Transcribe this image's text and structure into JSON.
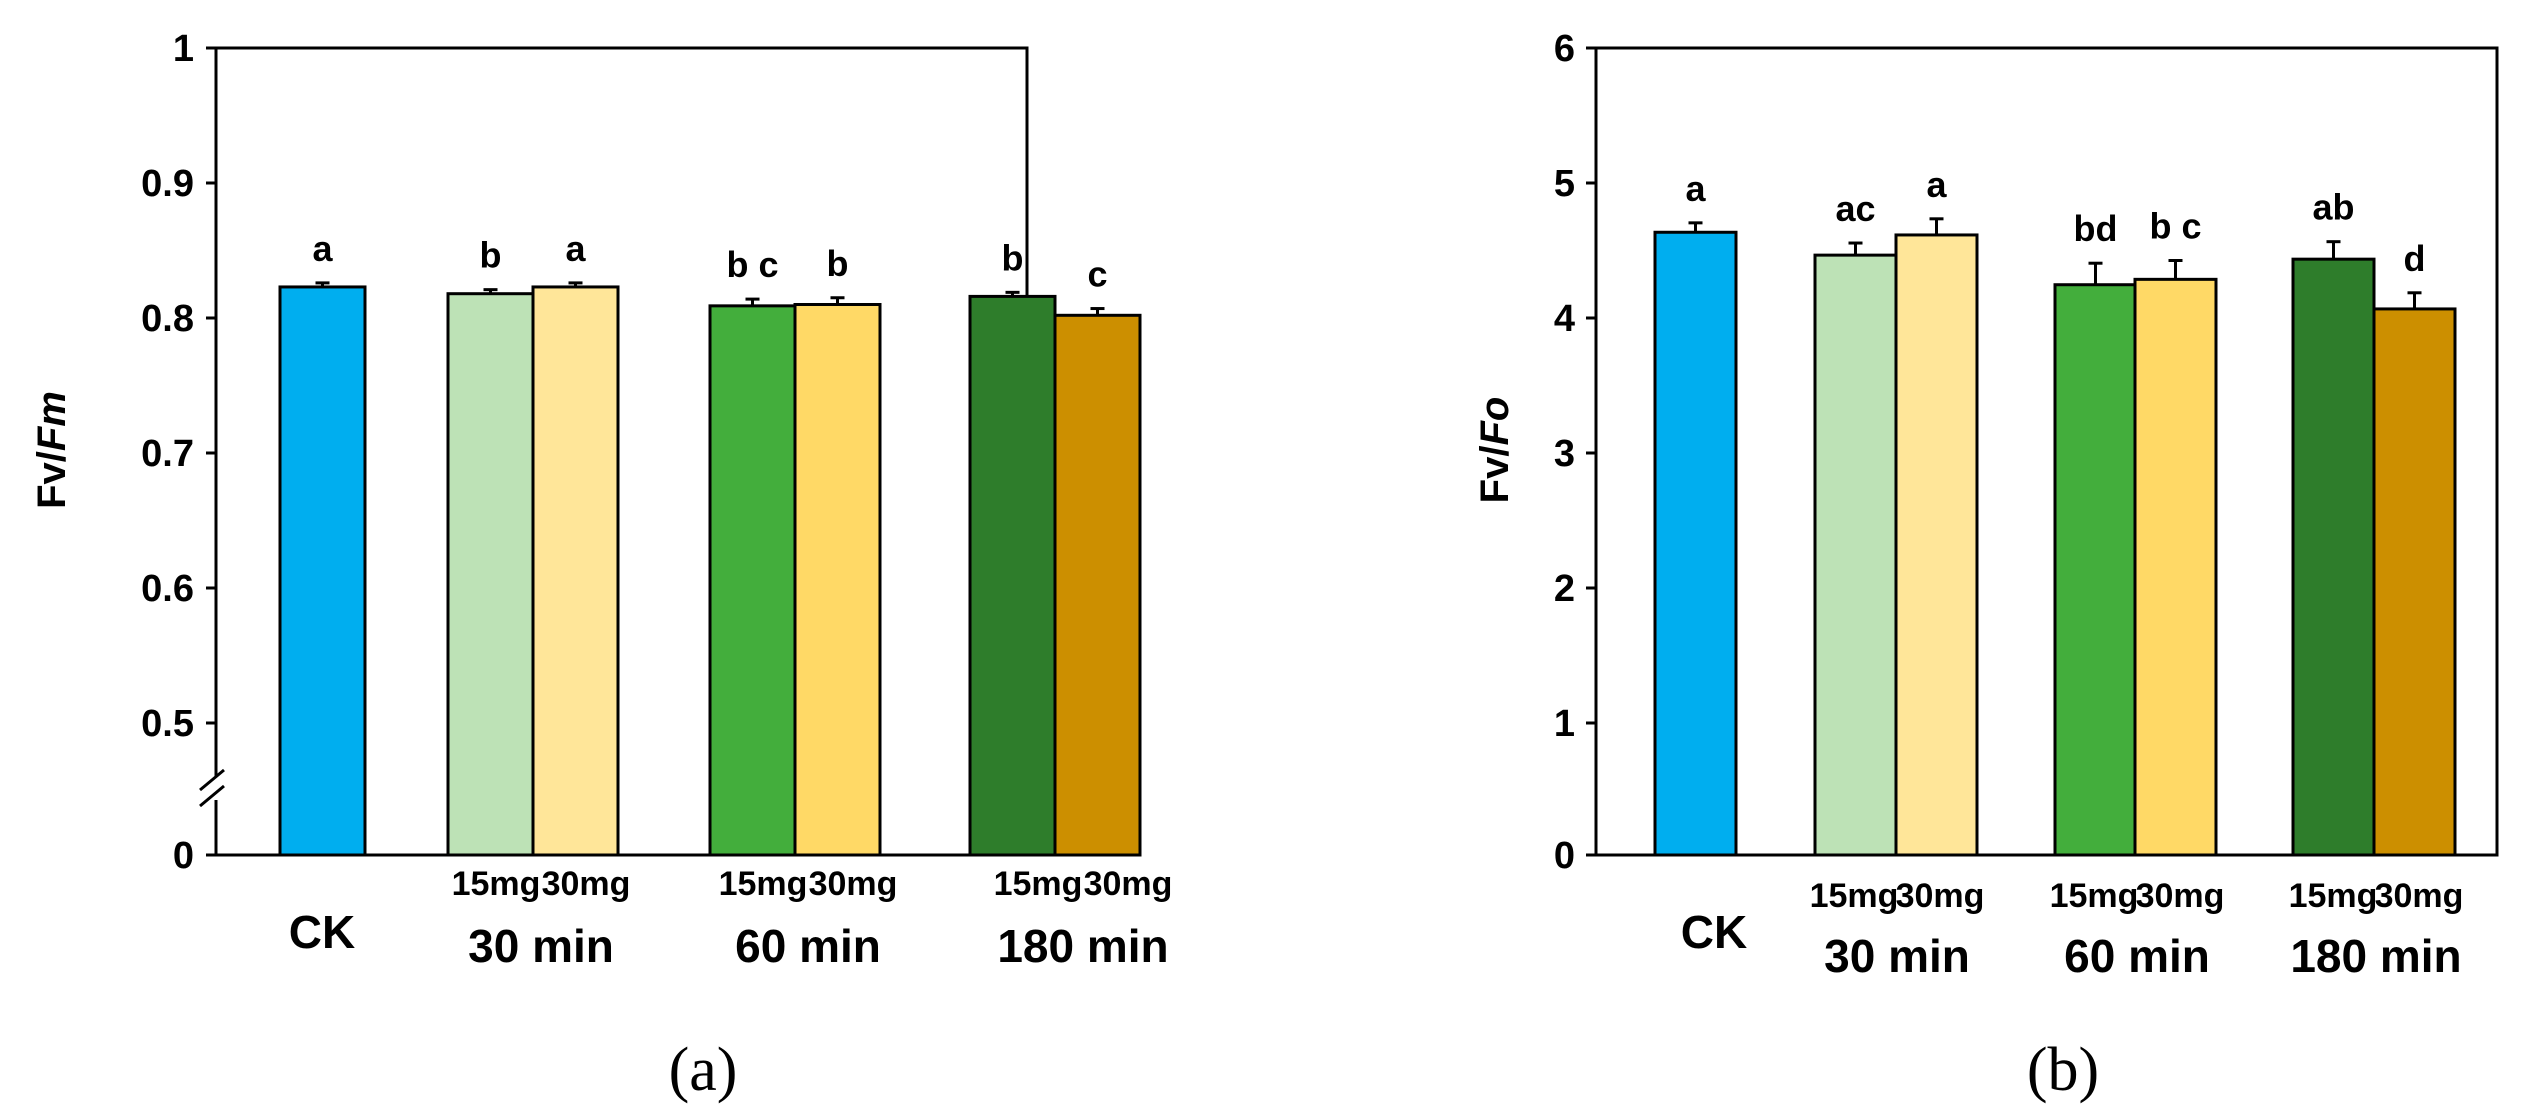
{
  "figure": {
    "panels": [
      {
        "id": "a",
        "caption": "(a)"
      },
      {
        "id": "b",
        "caption": "(b)"
      }
    ]
  },
  "chart_data": [
    {
      "type": "bar",
      "panel": "(a)",
      "ylabel_parts": [
        "Fv",
        "/",
        "Fm"
      ],
      "ylabel": "Fv/Fm",
      "axis_break": true,
      "yticks": [
        "1",
        "0.9",
        "0.8",
        "0.7",
        "0.6",
        "0.5",
        "0"
      ],
      "ylim_upper": [
        0.4,
        1.0
      ],
      "bars": [
        {
          "category": "CK",
          "dose": "",
          "group": "",
          "value": 0.823,
          "error": 0.003,
          "letter": "a",
          "color": "#00AEEF"
        },
        {
          "category": "15mg",
          "dose": "15mg",
          "group": "30 min",
          "value": 0.818,
          "error": 0.003,
          "letter": "b",
          "color": "#BDE2B6"
        },
        {
          "category": "30mg",
          "dose": "30mg",
          "group": "30 min",
          "value": 0.823,
          "error": 0.003,
          "letter": "a",
          "color": "#FFE699"
        },
        {
          "category": "15mg",
          "dose": "15mg",
          "group": "60 min",
          "value": 0.809,
          "error": 0.005,
          "letter": "bc",
          "color": "#43AE3C"
        },
        {
          "category": "30mg",
          "dose": "30mg",
          "group": "60 min",
          "value": 0.81,
          "error": 0.005,
          "letter": "b",
          "color": "#FFD966"
        },
        {
          "category": "15mg",
          "dose": "15mg",
          "group": "180 min",
          "value": 0.816,
          "error": 0.003,
          "letter": "b",
          "color": "#2E7D2B"
        },
        {
          "category": "30mg",
          "dose": "30mg",
          "group": "180 min",
          "value": 0.802,
          "error": 0.005,
          "letter": "c",
          "color": "#CC8F00"
        }
      ],
      "groups": [
        "30 min",
        "60 min",
        "180 min"
      ],
      "ck_label": "CK"
    },
    {
      "type": "bar",
      "panel": "(b)",
      "ylabel_parts": [
        "Fv",
        "/",
        "Fo"
      ],
      "ylabel": "Fv/Fo",
      "axis_break": false,
      "yticks": [
        "6",
        "5",
        "4",
        "3",
        "2",
        "1",
        "0"
      ],
      "ylim": [
        0,
        6
      ],
      "bars": [
        {
          "category": "CK",
          "dose": "",
          "group": "",
          "value": 4.63,
          "error": 0.07,
          "letter": "a",
          "color": "#00AEEF"
        },
        {
          "category": "15mg",
          "dose": "15mg",
          "group": "30 min",
          "value": 4.46,
          "error": 0.09,
          "letter": "ac",
          "color": "#BDE2B6"
        },
        {
          "category": "30mg",
          "dose": "30mg",
          "group": "30 min",
          "value": 4.61,
          "error": 0.12,
          "letter": "a",
          "color": "#FFE699"
        },
        {
          "category": "15mg",
          "dose": "15mg",
          "group": "60 min",
          "value": 4.24,
          "error": 0.16,
          "letter": "bd",
          "color": "#43AE3C"
        },
        {
          "category": "30mg",
          "dose": "30mg",
          "group": "60 min",
          "value": 4.28,
          "error": 0.14,
          "letter": "bc",
          "color": "#FFD966"
        },
        {
          "category": "15mg",
          "dose": "15mg",
          "group": "180 min",
          "value": 4.43,
          "error": 0.13,
          "letter": "ab",
          "color": "#2E7D2B"
        },
        {
          "category": "30mg",
          "dose": "30mg",
          "group": "180 min",
          "value": 4.06,
          "error": 0.12,
          "letter": "d",
          "color": "#CC8F00"
        }
      ],
      "groups": [
        "30 min",
        "60 min",
        "180 min"
      ],
      "ck_label": "CK"
    }
  ]
}
